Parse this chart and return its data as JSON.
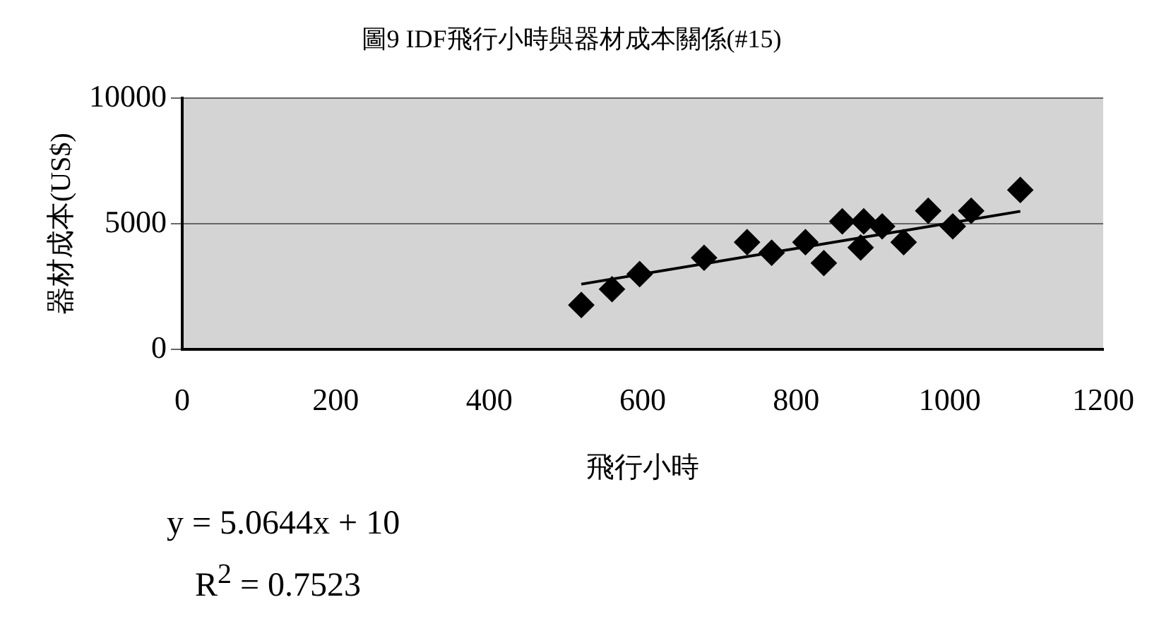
{
  "chart_data": {
    "type": "scatter",
    "title": "圖9 IDF飛行小時與器材成本關係(#15)",
    "xlabel": "飛行小時",
    "ylabel": "器材成本(US$)",
    "xlim": [
      0,
      1200
    ],
    "xticks": [
      0,
      200,
      400,
      600,
      800,
      1000,
      1200
    ],
    "ylim": [
      0,
      10000
    ],
    "yticks": [
      0,
      5000,
      10000
    ],
    "grid": "y",
    "legend": false,
    "marker": "diamond",
    "series": [
      {
        "color": "#000000",
        "x": [
          520,
          560,
          596,
          680,
          736,
          768,
          812,
          836,
          860,
          884,
          888,
          912,
          940,
          972,
          1004,
          1028,
          1092
        ],
        "values": [
          1770,
          2400,
          3000,
          3650,
          4270,
          3850,
          4270,
          3440,
          5100,
          4060,
          5100,
          4900,
          4270,
          5520,
          4900,
          5520,
          6350
        ]
      },
      {
        "type": "line",
        "color": "#000000",
        "marker": "none",
        "x": [
          520,
          1092
        ],
        "values": [
          2600,
          5500
        ]
      }
    ],
    "annotations": [
      "y = 5.0644x + 10",
      "R$^{2}$ = 0.7523"
    ]
  }
}
